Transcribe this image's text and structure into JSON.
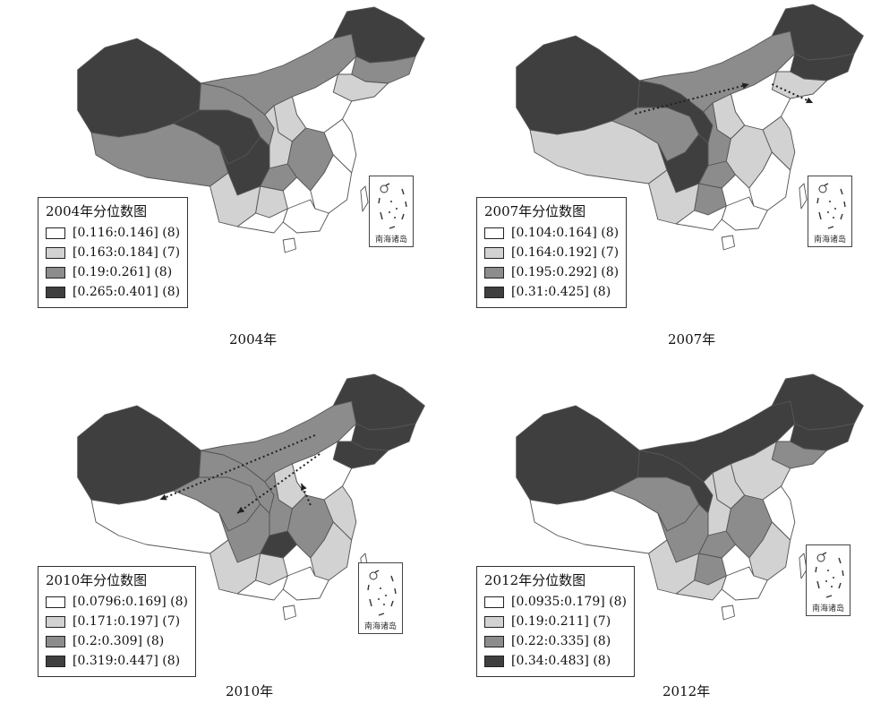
{
  "colors": {
    "class1": "#ffffff",
    "class2": "#d2d2d2",
    "class3": "#8c8c8c",
    "class4": "#3f3f3f",
    "outline": "#555555"
  },
  "panels": [
    {
      "year_caption": "2004年",
      "legend_title": "2004年分位数图",
      "legend_items": [
        "[0.116:0.146] (8)",
        "[0.163:0.184] (7)",
        "[0.19:0.261] (8)",
        "[0.265:0.401] (8)"
      ],
      "inset_label": "南海诸岛",
      "regions": {
        "xinjiang": 4,
        "tibet": 3,
        "qinghai": 4,
        "gansu": 3,
        "innermongolia": 3,
        "heilongjiang": 4,
        "jilin": 3,
        "liaoning": 2,
        "north": 1,
        "shanxi": 2,
        "shaanxi": 2,
        "sichuan": 4,
        "chongqing": 3,
        "yunnan": 2,
        "guizhou": 2,
        "central": 3,
        "east": 1,
        "southeast": 1,
        "guangdong": 1,
        "guangxi": 1,
        "hainan": 1,
        "taiwan": 1
      },
      "arrows": []
    },
    {
      "year_caption": "2007年",
      "legend_title": "2007年分位数图",
      "legend_items": [
        "[0.104:0.164] (8)",
        "[0.164:0.192] (7)",
        "[0.195:0.292] (8)",
        "[0.31:0.425] (8)"
      ],
      "inset_label": "南海诸岛",
      "regions": {
        "xinjiang": 4,
        "tibet": 2,
        "qinghai": 3,
        "gansu": 4,
        "innermongolia": 3,
        "heilongjiang": 4,
        "jilin": 4,
        "liaoning": 2,
        "north": 1,
        "shanxi": 2,
        "shaanxi": 3,
        "sichuan": 4,
        "chongqing": 3,
        "yunnan": 2,
        "guizhou": 3,
        "central": 2,
        "east": 2,
        "southeast": 1,
        "guangdong": 1,
        "guangxi": 1,
        "hainan": 1,
        "taiwan": 1
      },
      "arrows": [
        [
          0.43,
          0.44,
          0.68,
          0.33
        ],
        [
          0.73,
          0.33,
          0.82,
          0.4
        ]
      ]
    },
    {
      "year_caption": "2010年",
      "legend_title": "2010年分位数图",
      "legend_items": [
        "[0.0796:0.169] (8)",
        "[0.171:0.197] (7)",
        "[0.2:0.309] (8)",
        "[0.319:0.447] (8)"
      ],
      "inset_label": "南海诸岛",
      "regions": {
        "xinjiang": 4,
        "tibet": 1,
        "qinghai": 3,
        "gansu": 3,
        "innermongolia": 3,
        "heilongjiang": 4,
        "jilin": 4,
        "liaoning": 4,
        "north": 1,
        "shanxi": 2,
        "shaanxi": 3,
        "sichuan": 3,
        "chongqing": 4,
        "yunnan": 2,
        "guizhou": 2,
        "central": 3,
        "east": 2,
        "southeast": 2,
        "guangdong": 1,
        "guangxi": 1,
        "hainan": 1,
        "taiwan": 1
      },
      "arrows": [
        [
          0.69,
          0.26,
          0.35,
          0.5
        ],
        [
          0.7,
          0.33,
          0.52,
          0.55
        ],
        [
          0.68,
          0.52,
          0.66,
          0.44
        ]
      ]
    },
    {
      "year_caption": "2012年",
      "legend_title": "2012年分位数图",
      "legend_items": [
        "[0.0935:0.179] (8)",
        "[0.19:0.211] (7)",
        "[0.22:0.335] (8)",
        "[0.34:0.483] (8)"
      ],
      "inset_label": "南海诸岛",
      "regions": {
        "xinjiang": 4,
        "tibet": 1,
        "qinghai": 3,
        "gansu": 4,
        "innermongolia": 4,
        "heilongjiang": 4,
        "jilin": 4,
        "liaoning": 3,
        "north": 2,
        "shanxi": 2,
        "shaanxi": 2,
        "sichuan": 3,
        "chongqing": 3,
        "yunnan": 2,
        "guizhou": 3,
        "central": 3,
        "east": 1,
        "southeast": 2,
        "guangdong": 1,
        "guangxi": 2,
        "hainan": 1,
        "taiwan": 1
      },
      "arrows": []
    }
  ]
}
